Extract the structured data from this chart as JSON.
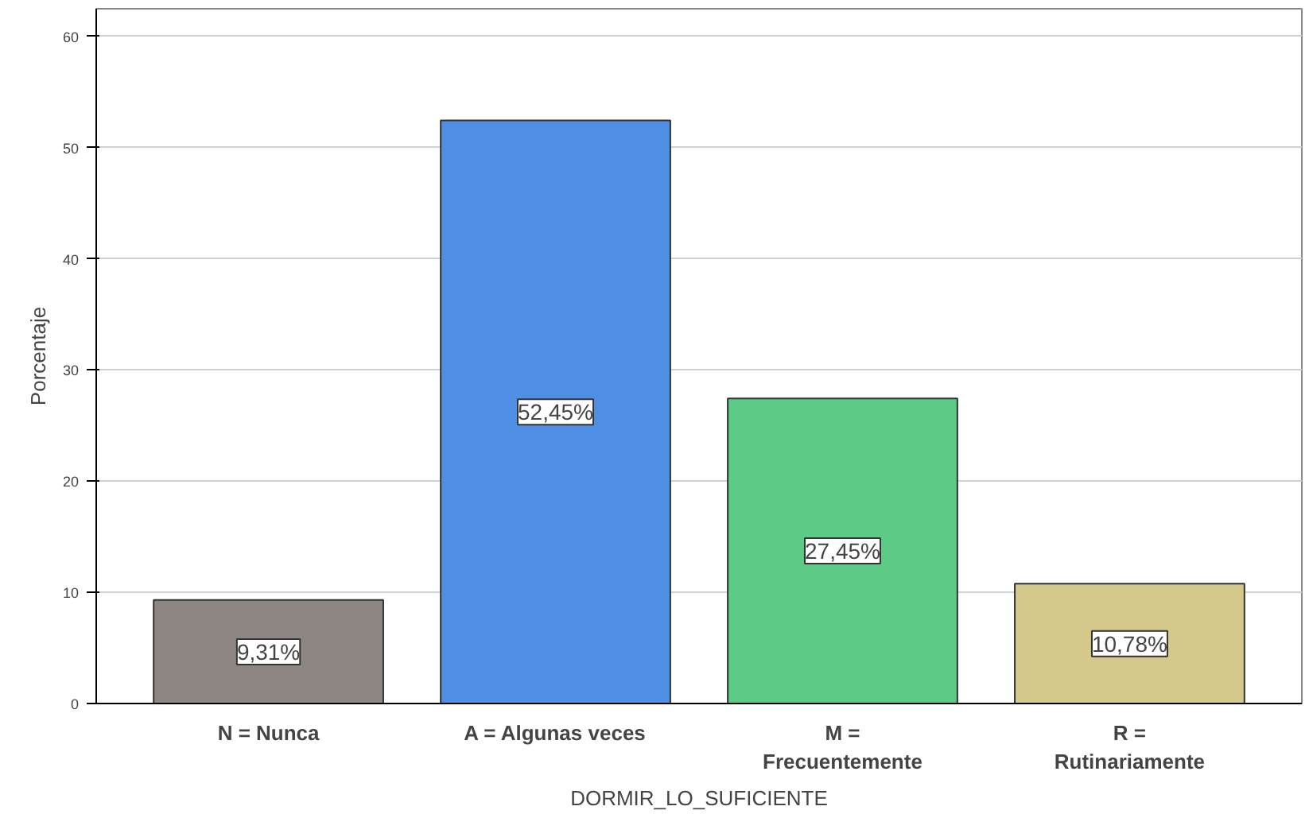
{
  "chart_data": {
    "type": "bar",
    "xlabel": "DORMIR_LO_SUFICIENTE",
    "ylabel": "Porcentaje",
    "categories": [
      "N = Nunca",
      "A = Algunas veces",
      "M =\nFrecuentemente",
      "R =\nRutinariamente"
    ],
    "values": [
      9.31,
      52.45,
      27.45,
      10.78
    ],
    "value_labels": [
      "9,31%",
      "52,45%",
      "27,45%",
      "10,78%"
    ],
    "colors": [
      "#8e8683",
      "#4f8fe3",
      "#5bcb86",
      "#d4c98b"
    ],
    "ylim": [
      0,
      62.5
    ],
    "yticks": [
      0,
      10,
      20,
      30,
      40,
      50,
      60
    ],
    "grid": "y"
  }
}
